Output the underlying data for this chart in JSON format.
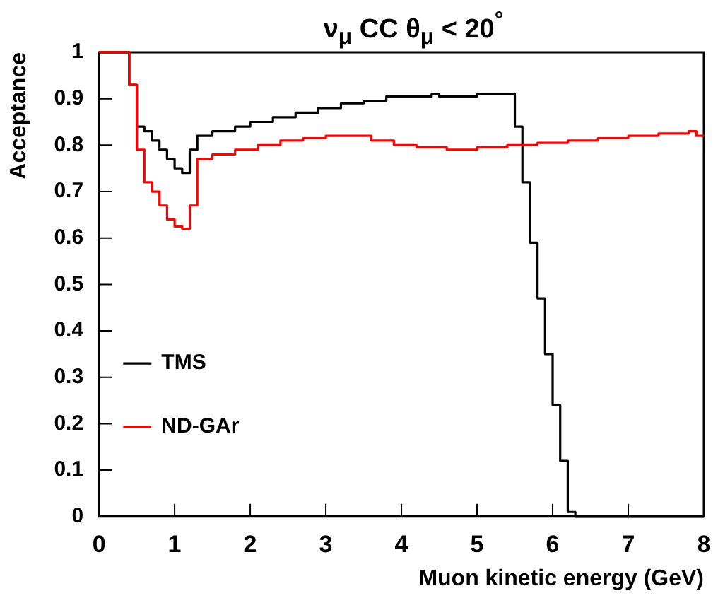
{
  "chart_data": {
    "type": "step",
    "title": "ν$_{μ}$ CC θ$_{μ}$ < 20$^{°}$",
    "xlabel": "Muon kinetic energy (GeV)",
    "ylabel": "Acceptance",
    "xlim": [
      0,
      8
    ],
    "xticks": [
      0,
      1,
      2,
      3,
      4,
      5,
      6,
      7,
      8
    ],
    "ylim": [
      0,
      1
    ],
    "yticks": [
      0,
      0.1,
      0.2,
      0.3,
      0.4,
      0.5,
      0.6,
      0.7,
      0.8,
      0.9,
      1
    ],
    "grid": false,
    "legend": "left",
    "marker": "none",
    "line_style": "solid",
    "series": [
      {
        "name": "TMS",
        "color": "#000000",
        "x": [
          0,
          0.4,
          0.5,
          0.6,
          0.7,
          0.8,
          0.9,
          1.0,
          1.1,
          1.2,
          1.3,
          1.5,
          1.8,
          2.0,
          2.3,
          2.6,
          2.9,
          3.2,
          3.5,
          3.8,
          4.4,
          4.5,
          5.0,
          5.5,
          5.6,
          5.7,
          5.8,
          5.9,
          6.0,
          6.1,
          6.2,
          6.3,
          8
        ],
        "values": [
          1,
          0.93,
          0.84,
          0.83,
          0.81,
          0.79,
          0.77,
          0.75,
          0.74,
          0.79,
          0.82,
          0.83,
          0.84,
          0.85,
          0.86,
          0.87,
          0.88,
          0.89,
          0.895,
          0.905,
          0.91,
          0.905,
          0.91,
          0.84,
          0.72,
          0.59,
          0.47,
          0.35,
          0.24,
          0.12,
          0.01,
          0,
          0
        ]
      },
      {
        "name": "ND-GAr",
        "color": "#ff0000",
        "x": [
          0,
          0.4,
          0.5,
          0.6,
          0.7,
          0.8,
          0.9,
          1.0,
          1.1,
          1.2,
          1.3,
          1.5,
          1.8,
          2.1,
          2.4,
          2.7,
          3.0,
          3.3,
          3.6,
          3.9,
          4.2,
          4.6,
          5.0,
          5.4,
          5.8,
          6.2,
          6.6,
          7.0,
          7.4,
          7.8,
          7.9,
          8
        ],
        "values": [
          1,
          0.93,
          0.79,
          0.72,
          0.7,
          0.67,
          0.64,
          0.625,
          0.62,
          0.67,
          0.77,
          0.78,
          0.79,
          0.8,
          0.81,
          0.815,
          0.82,
          0.82,
          0.81,
          0.8,
          0.795,
          0.79,
          0.795,
          0.8,
          0.805,
          0.81,
          0.815,
          0.82,
          0.825,
          0.83,
          0.82,
          0.82
        ]
      }
    ]
  }
}
